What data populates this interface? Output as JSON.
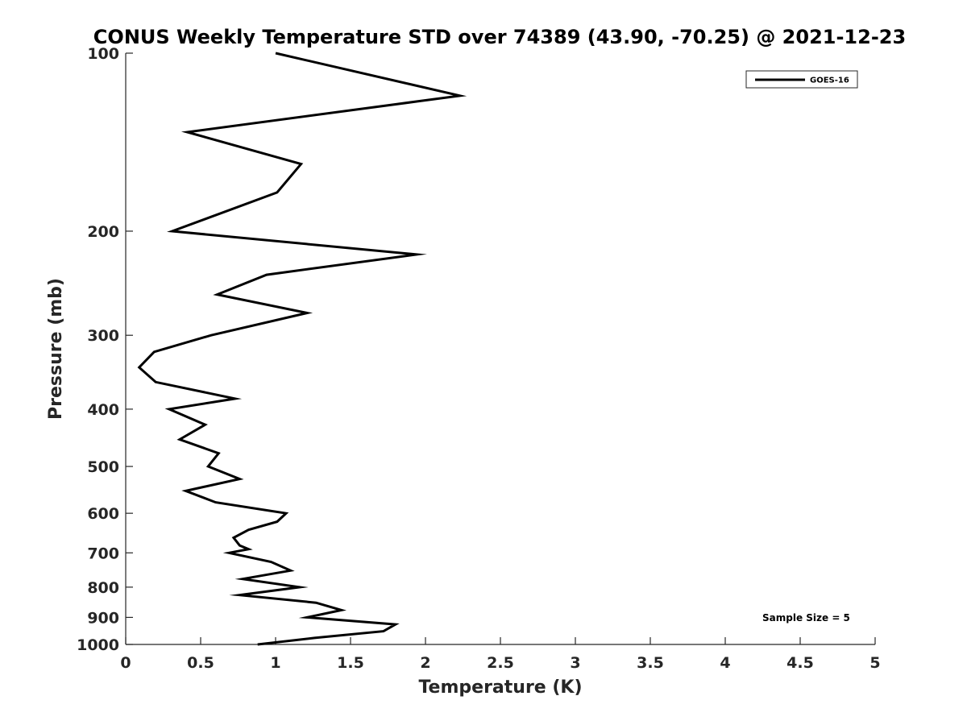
{
  "chart_data": {
    "type": "line",
    "title": "CONUS Weekly Temperature STD over 74389 (43.90, -70.25) @ 2021-12-23",
    "xlabel": "Temperature (K)",
    "ylabel": "Pressure (mb)",
    "xlim": [
      0,
      5
    ],
    "ylim": [
      100,
      1000
    ],
    "y_scale": "log",
    "y_reversed": true,
    "x_ticks": [
      "0",
      "0.5",
      "1",
      "1.5",
      "2",
      "2.5",
      "3",
      "3.5",
      "4",
      "4.5",
      "5"
    ],
    "y_ticks": [
      "100",
      "200",
      "300",
      "400",
      "500",
      "600",
      "700",
      "800",
      "900",
      "1000"
    ],
    "grid": false,
    "legend": {
      "placement": "top-right",
      "entries": [
        "GOES-16"
      ]
    },
    "annotation": "Sample Size = 5",
    "series": [
      {
        "name": "GOES-16",
        "color": "#000000",
        "points": [
          [
            1.0,
            100
          ],
          [
            2.23,
            118
          ],
          [
            0.41,
            136
          ],
          [
            1.17,
            154
          ],
          [
            1.01,
            172
          ],
          [
            0.31,
            200
          ],
          [
            1.94,
            219
          ],
          [
            0.94,
            237
          ],
          [
            0.61,
            256
          ],
          [
            1.21,
            275
          ],
          [
            0.57,
            300
          ],
          [
            0.19,
            320
          ],
          [
            0.09,
            340
          ],
          [
            0.2,
            360
          ],
          [
            0.73,
            384
          ],
          [
            0.29,
            400
          ],
          [
            0.53,
            425
          ],
          [
            0.36,
            450
          ],
          [
            0.62,
            475
          ],
          [
            0.55,
            500
          ],
          [
            0.76,
            525
          ],
          [
            0.4,
            550
          ],
          [
            0.6,
            575
          ],
          [
            1.07,
            600
          ],
          [
            1.01,
            620
          ],
          [
            0.82,
            640
          ],
          [
            0.72,
            660
          ],
          [
            0.76,
            680
          ],
          [
            0.82,
            690
          ],
          [
            0.69,
            700
          ],
          [
            0.97,
            725
          ],
          [
            1.1,
            750
          ],
          [
            0.78,
            775
          ],
          [
            1.16,
            800
          ],
          [
            0.76,
            825
          ],
          [
            1.27,
            850
          ],
          [
            1.44,
            875
          ],
          [
            1.21,
            900
          ],
          [
            1.8,
            925
          ],
          [
            1.72,
            950
          ],
          [
            1.26,
            975
          ],
          [
            0.88,
            1000
          ]
        ]
      }
    ]
  }
}
